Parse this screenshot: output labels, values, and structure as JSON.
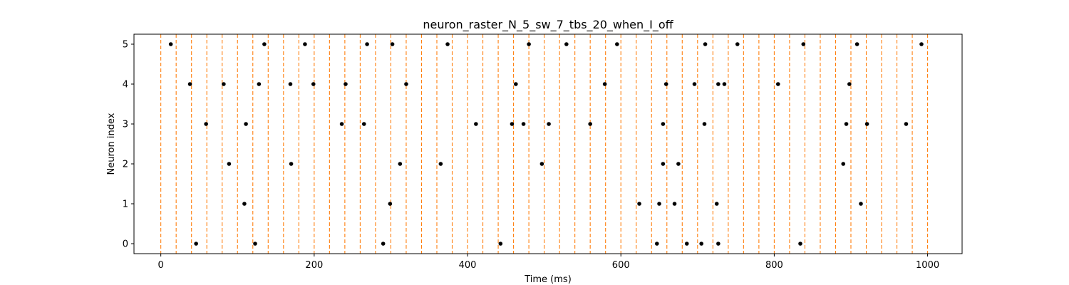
{
  "chart_data": {
    "type": "scatter",
    "title": "neuron_raster_N_5_sw_7_tbs_20_when_I_off",
    "xlabel": "Time (ms)",
    "ylabel": "Neuron index",
    "xlim": [
      -35,
      1045
    ],
    "ylim": [
      -0.25,
      5.25
    ],
    "xticks": [
      0,
      200,
      400,
      600,
      800,
      1000
    ],
    "yticks": [
      0,
      1,
      2,
      3,
      4,
      5
    ],
    "grid": false,
    "marker_color": "#000000",
    "vline_color": "#ff7f0e",
    "vline_style": "dashed",
    "vlines": [
      0,
      20,
      40,
      60,
      80,
      100,
      120,
      140,
      160,
      180,
      200,
      220,
      240,
      260,
      280,
      300,
      320,
      340,
      360,
      380,
      400,
      420,
      440,
      460,
      480,
      500,
      520,
      540,
      560,
      580,
      600,
      620,
      640,
      660,
      680,
      700,
      720,
      740,
      760,
      780,
      800,
      820,
      840,
      860,
      880,
      900,
      920,
      940,
      960,
      980,
      1000
    ],
    "series": [
      {
        "neuron": 0,
        "spikes": [
          46,
          123,
          290,
          443,
          647,
          686,
          705,
          727,
          834
        ]
      },
      {
        "neuron": 1,
        "spikes": [
          109,
          299,
          624,
          650,
          670,
          725,
          913
        ]
      },
      {
        "neuron": 2,
        "spikes": [
          89,
          170,
          312,
          365,
          497,
          655,
          675,
          890
        ]
      },
      {
        "neuron": 3,
        "spikes": [
          59,
          111,
          236,
          265,
          411,
          458,
          473,
          506,
          560,
          655,
          709,
          894,
          921,
          972
        ]
      },
      {
        "neuron": 4,
        "spikes": [
          38,
          82,
          128,
          169,
          199,
          241,
          320,
          463,
          579,
          659,
          696,
          727,
          735,
          805,
          898
        ]
      },
      {
        "neuron": 5,
        "spikes": [
          13,
          135,
          188,
          269,
          302,
          374,
          480,
          529,
          595,
          710,
          752,
          838,
          908,
          992
        ]
      }
    ]
  }
}
